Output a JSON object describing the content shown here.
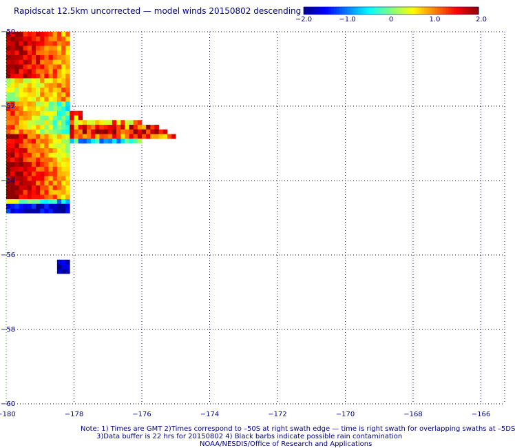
{
  "title": "Rapidscat 12.5km uncorrected — model winds 20150802 descending",
  "notes": {
    "line1": "Note: 1) Times are GMT 2)Times correspond to –50S at right swath edge — time is right swath for overlapping swaths at –5DS",
    "line2": "3)Data buffer is 22 hrs for 20150802 4) Black barbs indicate possible rain contamination",
    "line3": "NOAA/NESDIS/Office of Research and Applications"
  },
  "colorbar": {
    "min": -2.0,
    "max": 2.0,
    "tick_labels": [
      "−2.0",
      "−1.0",
      "0",
      "1.0",
      "2.0"
    ],
    "colors": [
      "#00008b",
      "#0000ff",
      "#0080ff",
      "#00ffff",
      "#80ff80",
      "#ffff00",
      "#ff8000",
      "#ff0000",
      "#8b0000"
    ]
  },
  "chart_data": {
    "type": "heatmap",
    "title": "Rapidscat 12.5km uncorrected — model winds 20150802 descending",
    "x_ticks": [
      -180,
      -178,
      -176,
      -174,
      -172,
      -170,
      -168,
      -166
    ],
    "x_tick_labels": [
      "−180",
      "−178",
      "−176",
      "−174",
      "−172",
      "−170",
      "−168",
      "−166"
    ],
    "y_ticks": [
      -50,
      -52,
      -54,
      -56,
      -58,
      -60
    ],
    "y_tick_labels": [
      "−50",
      "−52",
      "−54",
      "−56",
      "−58",
      "−60"
    ],
    "xlim": [
      -180,
      -165.3
    ],
    "ylim": [
      -60,
      -50
    ],
    "grid": true,
    "cell_size_deg": 0.125,
    "value_range": [
      -2.0,
      2.0
    ],
    "swath": {
      "lon_range": [
        -180,
        -178.125
      ],
      "lat_range": [
        -54.875,
        -50
      ],
      "lat_bands": [
        {
          "lat_range": [
            -51.25,
            -50
          ],
          "left_value": 2.0,
          "right_value": 0.7
        },
        {
          "lat_range": [
            -51.875,
            -51.25
          ],
          "left_value": 0.3,
          "right_value": 1.0
        },
        {
          "lat_range": [
            -52.75,
            -51.875
          ],
          "left_value": 1.2,
          "right_value": -0.4
        },
        {
          "lat_range": [
            -53.5,
            -52.75
          ],
          "left_value": 1.8,
          "right_value": 0.2
        },
        {
          "lat_range": [
            -54.5,
            -53.5
          ],
          "left_value": 2.0,
          "right_value": 0.6
        },
        {
          "lat_range": [
            -54.625,
            -54.5
          ],
          "left_value": 0.4,
          "right_value": -1.0
        },
        {
          "lat_range": [
            -54.875,
            -54.625
          ],
          "left_value": -1.5,
          "right_value": -1.8
        }
      ]
    },
    "extension_rows": [
      {
        "lat": -52.25,
        "lon_range": [
          -178.125,
          -177.75
        ],
        "value": 2.0
      },
      {
        "lat": -52.375,
        "lon_range": [
          -178.125,
          -177.75
        ],
        "value": 1.0
      },
      {
        "lat": -52.5,
        "lon_range": [
          -178.125,
          -176.0
        ],
        "value": 0.8
      },
      {
        "lat": -52.625,
        "lon_range": [
          -178.125,
          -175.5
        ],
        "value": 1.3
      },
      {
        "lat": -52.75,
        "lon_range": [
          -178.125,
          -175.25
        ],
        "value": 1.6
      },
      {
        "lat": -52.875,
        "lon_range": [
          -178.125,
          -175.0
        ],
        "value": 1.1
      },
      {
        "lat": -53.0,
        "lon_range": [
          -178.125,
          -176.0
        ],
        "value": -0.5
      }
    ],
    "isolated_patch": {
      "lon_range": [
        -178.5,
        -178.125
      ],
      "lat_range": [
        -56.5,
        -56.125
      ],
      "value": -1.8
    }
  }
}
